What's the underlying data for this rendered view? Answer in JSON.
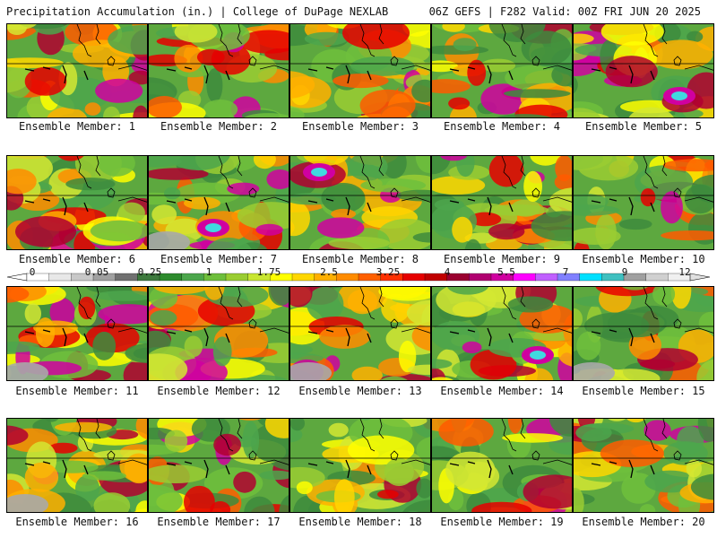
{
  "header": {
    "left": "Precipitation Accumulation (in.) | College of DuPage NEXLAB",
    "right": "06Z GEFS | F282 Valid: 00Z FRI JUN 20 2025"
  },
  "members": [
    {
      "label": "Ensemble Member: 1"
    },
    {
      "label": "Ensemble Member: 2"
    },
    {
      "label": "Ensemble Member: 3"
    },
    {
      "label": "Ensemble Member: 4"
    },
    {
      "label": "Ensemble Member: 5"
    },
    {
      "label": "Ensemble Member: 6"
    },
    {
      "label": "Ensemble Member: 7"
    },
    {
      "label": "Ensemble Member: 8"
    },
    {
      "label": "Ensemble Member: 9"
    },
    {
      "label": "Ensemble Member: 10"
    },
    {
      "label": "Ensemble Member: 11"
    },
    {
      "label": "Ensemble Member: 12"
    },
    {
      "label": "Ensemble Member: 13"
    },
    {
      "label": "Ensemble Member: 14"
    },
    {
      "label": "Ensemble Member: 15"
    },
    {
      "label": "Ensemble Member: 16"
    },
    {
      "label": "Ensemble Member: 17"
    },
    {
      "label": "Ensemble Member: 18"
    },
    {
      "label": "Ensemble Member: 19"
    },
    {
      "label": "Ensemble Member: 20"
    }
  ],
  "colorbar": {
    "tick_labels": [
      "0",
      "0.05",
      "0.25",
      "1",
      "1.75",
      "2.5",
      "3.25",
      "4",
      "5.5",
      "7",
      "9",
      "12"
    ],
    "colors": [
      "#ffffff",
      "#e8e8e8",
      "#c8c8c8",
      "#a0a0a0",
      "#707070",
      "#3d7a3d",
      "#2e8b2e",
      "#4ca64c",
      "#6ebf3c",
      "#9acd32",
      "#c8e632",
      "#ffff00",
      "#ffd700",
      "#ffb000",
      "#ff8c00",
      "#ff6000",
      "#ff3000",
      "#e60000",
      "#c00000",
      "#9a0030",
      "#b00070",
      "#d000a0",
      "#ff00ff",
      "#c060ff",
      "#8080ff",
      "#00e0ff",
      "#40c0c0",
      "#a0a0a0",
      "#d0d0d0",
      "#f0f0f0"
    ]
  }
}
